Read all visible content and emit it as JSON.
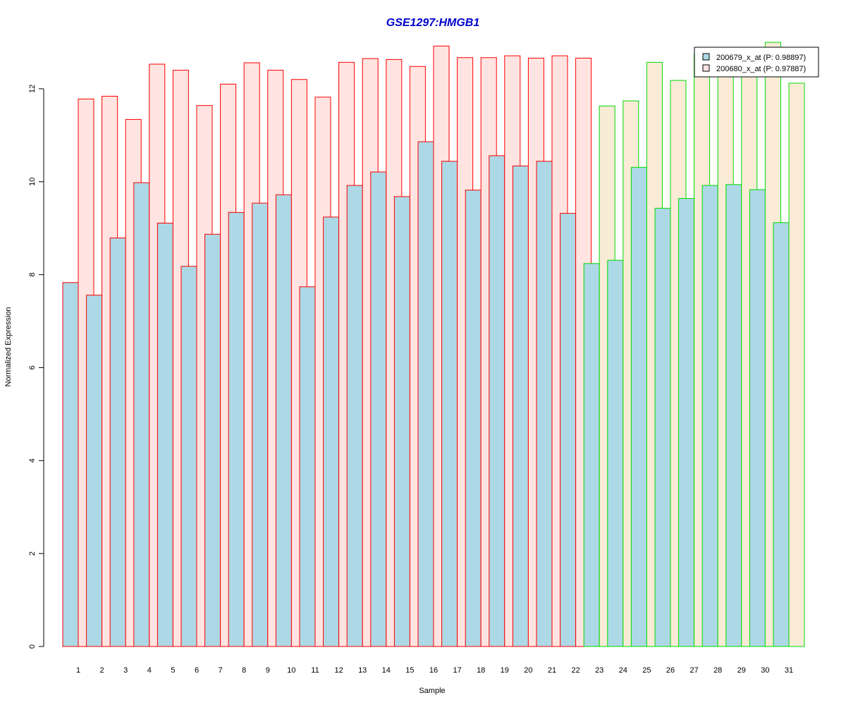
{
  "chart_data": {
    "type": "bar",
    "title": "GSE1297:HMGB1",
    "xlabel": "Sample",
    "ylabel": "Normalized Expression",
    "ylim": [
      0,
      13
    ],
    "yticks": [
      0,
      2,
      4,
      6,
      8,
      10,
      12
    ],
    "categories": [
      "1",
      "2",
      "3",
      "4",
      "5",
      "6",
      "7",
      "8",
      "9",
      "10",
      "11",
      "12",
      "13",
      "14",
      "15",
      "16",
      "17",
      "18",
      "19",
      "20",
      "21",
      "22",
      "23",
      "24",
      "25",
      "26",
      "27",
      "28",
      "29",
      "30",
      "31"
    ],
    "group_edge_colors": [
      "#ff0000",
      "#ff0000",
      "#ff0000",
      "#ff0000",
      "#ff0000",
      "#ff0000",
      "#ff0000",
      "#ff0000",
      "#ff0000",
      "#ff0000",
      "#ff0000",
      "#ff0000",
      "#ff0000",
      "#ff0000",
      "#ff0000",
      "#ff0000",
      "#ff0000",
      "#ff0000",
      "#ff0000",
      "#ff0000",
      "#ff0000",
      "#ff0000",
      "#00dd00",
      "#00dd00",
      "#00dd00",
      "#00dd00",
      "#00dd00",
      "#00dd00",
      "#00dd00",
      "#00dd00",
      "#00dd00"
    ],
    "series": [
      {
        "name": "200679_x_at (P: 0.98897)",
        "fill": "#add8e6",
        "values": [
          7.83,
          7.56,
          8.79,
          9.98,
          9.11,
          8.18,
          8.87,
          9.34,
          9.54,
          9.72,
          7.74,
          9.24,
          9.92,
          10.21,
          9.68,
          10.86,
          10.44,
          9.82,
          10.56,
          10.34,
          10.44,
          9.32,
          8.24,
          8.31,
          10.31,
          9.43,
          9.64,
          9.92,
          9.94,
          9.83,
          9.12
        ]
      },
      {
        "name": "200680_x_at (P: 0.97887)",
        "fill": "#ffe4e1",
        "fill_alt": "#faebd7",
        "values": [
          11.78,
          11.84,
          11.34,
          12.53,
          12.4,
          11.64,
          12.1,
          12.56,
          12.4,
          12.2,
          11.82,
          12.57,
          12.65,
          12.63,
          12.48,
          12.92,
          12.67,
          12.67,
          12.71,
          12.66,
          12.71,
          12.66,
          11.63,
          11.74,
          12.57,
          12.18,
          12.74,
          12.5,
          12.5,
          13.0,
          12.12
        ]
      }
    ],
    "legend_position": "top-right"
  }
}
